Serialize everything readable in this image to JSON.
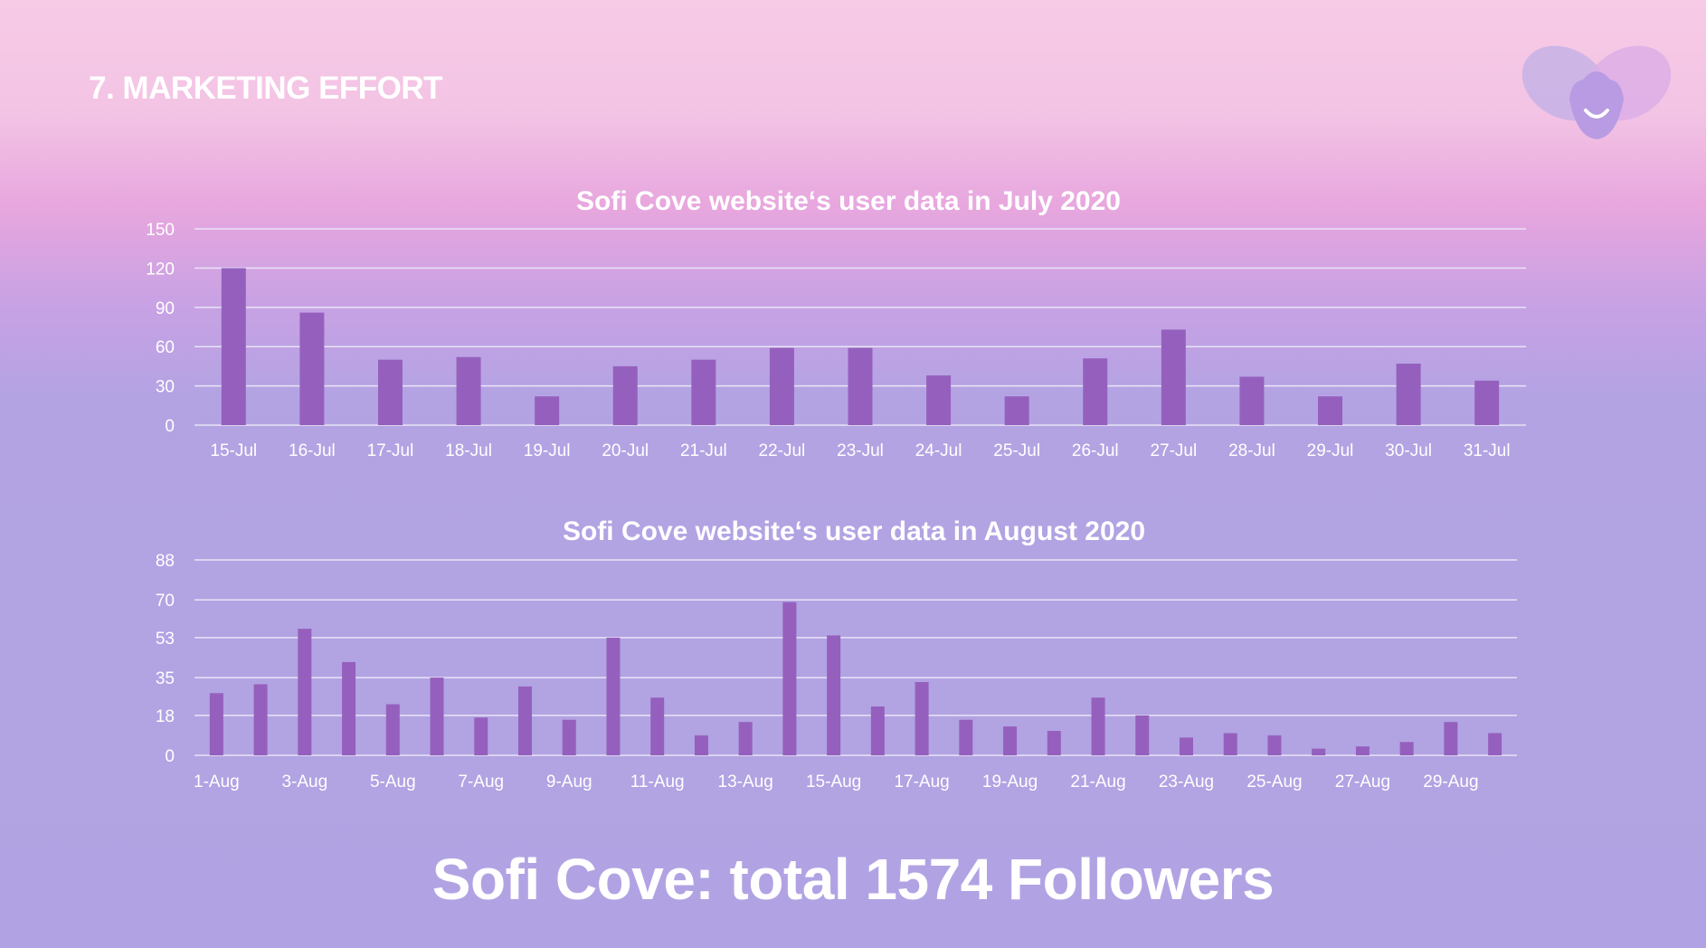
{
  "slide": {
    "title": "7. MARKETING EFFORT",
    "footer": "Sofi Cove: total 1574 Followers"
  },
  "colors": {
    "bar": "#9560bd",
    "grid": "#e8e4f5",
    "text": "#ffffff"
  },
  "icons": {
    "logo": "heart-face-logo"
  },
  "chart_data": [
    {
      "type": "bar",
      "title": "Sofi Cove website‘s user data in July 2020",
      "categories": [
        "15-Jul",
        "16-Jul",
        "17-Jul",
        "18-Jul",
        "19-Jul",
        "20-Jul",
        "21-Jul",
        "22-Jul",
        "23-Jul",
        "24-Jul",
        "25-Jul",
        "26-Jul",
        "27-Jul",
        "28-Jul",
        "29-Jul",
        "30-Jul",
        "31-Jul"
      ],
      "values": [
        120,
        86,
        50,
        52,
        22,
        45,
        50,
        59,
        59,
        38,
        22,
        51,
        73,
        37,
        22,
        47,
        34
      ],
      "y_ticks": [
        0,
        30,
        60,
        90,
        120,
        150
      ],
      "ylim": [
        0,
        150
      ],
      "grid": true
    },
    {
      "type": "bar",
      "title": "Sofi Cove website‘s user data in August 2020",
      "categories": [
        "1-Aug",
        "2-Aug",
        "3-Aug",
        "4-Aug",
        "5-Aug",
        "6-Aug",
        "7-Aug",
        "8-Aug",
        "9-Aug",
        "10-Aug",
        "11-Aug",
        "12-Aug",
        "13-Aug",
        "14-Aug",
        "15-Aug",
        "16-Aug",
        "17-Aug",
        "18-Aug",
        "19-Aug",
        "20-Aug",
        "21-Aug",
        "22-Aug",
        "23-Aug",
        "24-Aug",
        "25-Aug",
        "26-Aug",
        "27-Aug",
        "28-Aug",
        "29-Aug",
        "30-Aug"
      ],
      "tick_labels": [
        "1-Aug",
        "3-Aug",
        "5-Aug",
        "7-Aug",
        "9-Aug",
        "11-Aug",
        "13-Aug",
        "15-Aug",
        "17-Aug",
        "19-Aug",
        "21-Aug",
        "23-Aug",
        "25-Aug",
        "27-Aug",
        "29-Aug"
      ],
      "values": [
        28,
        32,
        57,
        42,
        23,
        35,
        17,
        31,
        16,
        53,
        26,
        9,
        15,
        69,
        54,
        22,
        33,
        16,
        13,
        11,
        26,
        18,
        8,
        10,
        9,
        3,
        4,
        6,
        15,
        10
      ],
      "y_ticks": [
        0,
        18,
        35,
        53,
        70,
        88
      ],
      "ylim": [
        0,
        88
      ],
      "grid": true
    }
  ]
}
